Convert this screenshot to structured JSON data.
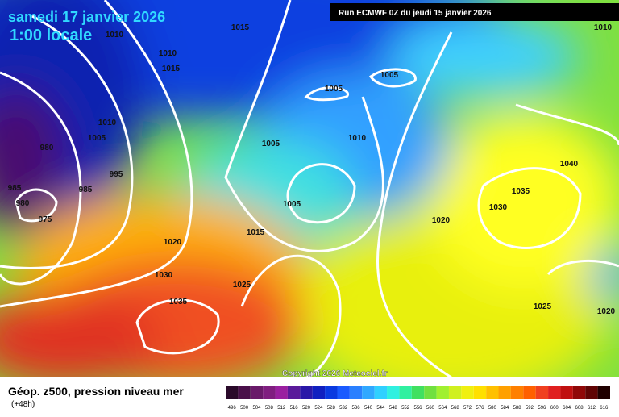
{
  "header": {
    "title": "samedi 17 janvier 2026",
    "time": "1:00 locale",
    "run": "Run ECMWF 0Z du jeudi 15 janvier 2026",
    "copyright": "Copyright 2026 Meteociel.fr"
  },
  "footer": {
    "caption": "Géop. z500, pression niveau mer",
    "lead": "(+48h)"
  },
  "isobar_labels": [
    1010,
    1015,
    1010,
    1015,
    1010,
    1005,
    1005,
    1010,
    1005,
    980,
    1005,
    1010,
    995,
    985,
    985,
    980,
    975,
    1005,
    1020,
    1030,
    1035,
    1040,
    1020,
    1015,
    1030,
    1025,
    1035,
    1025,
    1020
  ],
  "scale": {
    "values": [
      496,
      500,
      504,
      508,
      512,
      516,
      520,
      524,
      528,
      532,
      536,
      540,
      544,
      548,
      552,
      556,
      560,
      564,
      568,
      572,
      576,
      580,
      584,
      588,
      592,
      596,
      600,
      604,
      608,
      612,
      616
    ],
    "colors": [
      "#2a0a2a",
      "#4a104a",
      "#6a1a6a",
      "#801e80",
      "#9a20a0",
      "#5a1a9a",
      "#2a18a8",
      "#1020c0",
      "#0a3ae0",
      "#1a5aff",
      "#2a80ff",
      "#30a8ff",
      "#30d0ff",
      "#30f0e0",
      "#30f0a0",
      "#40e060",
      "#70e040",
      "#a0f030",
      "#d0f020",
      "#f0f010",
      "#ffe000",
      "#ffc000",
      "#ffa000",
      "#ff8000",
      "#ff6000",
      "#f04020",
      "#e02020",
      "#c01010",
      "#900808",
      "#600404",
      "#200000"
    ]
  }
}
